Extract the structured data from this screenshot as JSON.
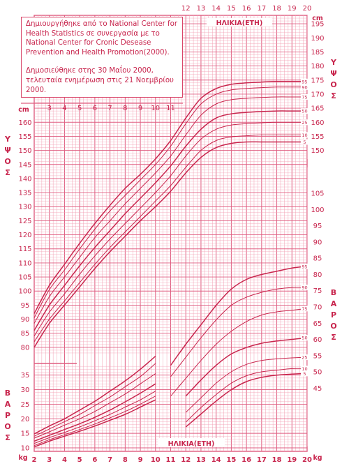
{
  "note": {
    "line1": "Δημιουργήθηκε από το National Center for Health Statistics σε συνεργασία με το National Center for Cronic Desease Prevention and Health Promotion(2000).",
    "line2": "Δημοσιεύθηκε στης 30 Μαΐου 2000, τελευταία ενημέρωση στις 21 Νοεμβρίου 2000."
  },
  "labels": {
    "age_top": "ΗΛΙΚΙΑ(ΕΤΗ)",
    "age_bottom": "ΗΛΙΚΙΑ(ΕΤΗ)",
    "cm": "cm",
    "kg": "kg",
    "height_left": "Υ Ψ Ο Σ",
    "height_right": "Υ Ψ Ο Σ",
    "weight_left": "Β Α Ρ Ο Σ",
    "weight_right": "Β Α Ρ Ο Σ"
  },
  "colors": {
    "grid": "#f3a0b4",
    "grid_major": "#df5d80",
    "curve": "#c8254d",
    "text": "#c8254d"
  },
  "chart_data": {
    "type": "line",
    "x_label": "ΗΛΙΚΙΑ(ΕΤΗ)",
    "xlim": [
      2,
      20
    ],
    "x_ticks": [
      2,
      3,
      4,
      5,
      6,
      7,
      8,
      9,
      10,
      11,
      12,
      13,
      14,
      15,
      16,
      17,
      18,
      19,
      20
    ],
    "percentiles": [
      "95",
      "90",
      "75",
      "50",
      "25",
      "10",
      "5"
    ],
    "x": [
      2,
      3,
      4,
      5,
      6,
      7,
      8,
      9,
      10,
      11,
      12,
      13,
      14,
      15,
      16,
      17,
      18,
      19,
      20
    ],
    "stature": {
      "unit": "cm",
      "ylim": [
        77,
        198
      ],
      "left_ticks": [
        80,
        85,
        90,
        95,
        100,
        105,
        110,
        115,
        120,
        125,
        130,
        135,
        140,
        145,
        150,
        155,
        160
      ],
      "right_ticks": [
        150,
        155,
        160,
        165,
        170,
        175,
        180,
        185,
        190,
        195
      ],
      "series": [
        {
          "name": "95",
          "values": [
            92,
            102,
            109.5,
            117,
            124,
            130.5,
            136.5,
            141.5,
            147,
            153.5,
            161.5,
            168.5,
            172,
            173.5,
            174,
            174.3,
            174.5,
            174.5,
            174.5
          ]
        },
        {
          "name": "90",
          "values": [
            90.5,
            100.5,
            107.5,
            115,
            122,
            128.5,
            134,
            139.5,
            145,
            151.5,
            159.5,
            166.5,
            170,
            171.5,
            172,
            172.3,
            172.5,
            172.5,
            172.5
          ]
        },
        {
          "name": "75",
          "values": [
            88.5,
            98,
            105,
            112,
            119,
            125,
            131,
            136.5,
            142,
            148,
            155.5,
            162.5,
            166.5,
            168,
            168.5,
            168.8,
            169,
            169,
            169
          ]
        },
        {
          "name": "50",
          "values": [
            86,
            95,
            102,
            109,
            115.5,
            121.5,
            127.5,
            133,
            138.5,
            144.5,
            151.5,
            157.5,
            161.5,
            163,
            163.5,
            163.8,
            164,
            164,
            164
          ]
        },
        {
          "name": "25",
          "values": [
            84,
            92.5,
            99,
            106,
            112.5,
            118.5,
            124,
            129.5,
            135,
            141,
            148,
            154,
            157.5,
            159,
            159.5,
            159.8,
            160,
            160,
            160
          ]
        },
        {
          "name": "10",
          "values": [
            82,
            90,
            96.5,
            103,
            109.5,
            115.5,
            121,
            126.5,
            132,
            137.5,
            144,
            150,
            153.5,
            154.8,
            155.2,
            155.5,
            155.5,
            155.5,
            155.5
          ]
        },
        {
          "name": "5",
          "values": [
            80,
            88.5,
            95,
            101.5,
            108,
            114,
            119.5,
            125,
            130,
            135.5,
            142,
            147.5,
            151,
            152.5,
            153,
            153,
            153,
            153,
            153
          ]
        }
      ]
    },
    "weight_upper": {
      "unit": "kg",
      "ylim": [
        27,
        113
      ],
      "right_ticks": [
        45,
        50,
        55,
        60,
        65,
        70,
        75,
        80,
        85,
        90,
        95,
        100,
        105
      ],
      "series": [
        {
          "name": "95",
          "values": [
            null,
            null,
            null,
            null,
            null,
            null,
            null,
            null,
            null,
            52,
            58.5,
            64.5,
            70.5,
            75.5,
            78.5,
            80,
            81,
            82,
            82.5
          ]
        },
        {
          "name": "90",
          "values": [
            null,
            null,
            null,
            null,
            null,
            null,
            null,
            null,
            null,
            48.5,
            54.5,
            60.5,
            66,
            70.5,
            73,
            74.5,
            75.5,
            76,
            76
          ]
        },
        {
          "name": "75",
          "values": [
            null,
            null,
            null,
            null,
            null,
            null,
            null,
            null,
            null,
            42.5,
            48,
            53.5,
            58.5,
            62.5,
            65.5,
            67.5,
            68.5,
            69,
            69.5
          ]
        },
        {
          "name": "50",
          "values": [
            null,
            null,
            null,
            null,
            null,
            null,
            null,
            null,
            null,
            null,
            42.5,
            47.5,
            52,
            55.5,
            57.5,
            58.8,
            59.5,
            60,
            60.5
          ]
        },
        {
          "name": "25",
          "values": [
            null,
            null,
            null,
            null,
            null,
            null,
            null,
            null,
            null,
            null,
            37.5,
            42,
            46.5,
            50,
            52.3,
            53.5,
            54,
            54.3,
            54.5
          ]
        },
        {
          "name": "10",
          "values": [
            null,
            null,
            null,
            null,
            null,
            null,
            null,
            null,
            null,
            null,
            34.5,
            39,
            43,
            46.5,
            48.8,
            50,
            50.5,
            51,
            51
          ]
        },
        {
          "name": "5",
          "values": [
            null,
            null,
            null,
            null,
            null,
            null,
            null,
            null,
            null,
            null,
            33,
            37,
            41,
            44.5,
            47,
            48.3,
            49,
            49.3,
            49.5
          ]
        }
      ]
    },
    "weight_lower": {
      "unit": "kg",
      "ylim": [
        8.8,
        39
      ],
      "left_ticks": [
        10,
        15,
        20,
        25,
        30,
        35
      ],
      "right_ticks": [
        10,
        15,
        20,
        25,
        30,
        35
      ],
      "series": [
        {
          "name": "95",
          "values": [
            14.8,
            17.5,
            20,
            23,
            26,
            29.5,
            33,
            37,
            41.5
          ]
        },
        {
          "name": "90",
          "values": [
            14,
            16.5,
            19,
            21.5,
            24.5,
            27.5,
            31,
            34.5,
            39
          ]
        },
        {
          "name": "75",
          "values": [
            13.3,
            15.5,
            17.8,
            20,
            22.5,
            25.5,
            28.5,
            32,
            35.5
          ]
        },
        {
          "name": "50",
          "values": [
            12.3,
            14.3,
            16.3,
            18.3,
            20.5,
            23,
            25.8,
            28.8,
            32
          ]
        },
        {
          "name": "25",
          "values": [
            11.5,
            13.5,
            15.3,
            17.2,
            19.3,
            21.5,
            24,
            26.5,
            29.5
          ]
        },
        {
          "name": "10",
          "values": [
            10.8,
            12.8,
            14.5,
            16.3,
            18.2,
            20.3,
            22.5,
            25,
            27.8
          ]
        },
        {
          "name": "5",
          "values": [
            10.3,
            12.3,
            14,
            15.7,
            17.5,
            19.5,
            21.5,
            24,
            26.5
          ]
        }
      ]
    }
  }
}
